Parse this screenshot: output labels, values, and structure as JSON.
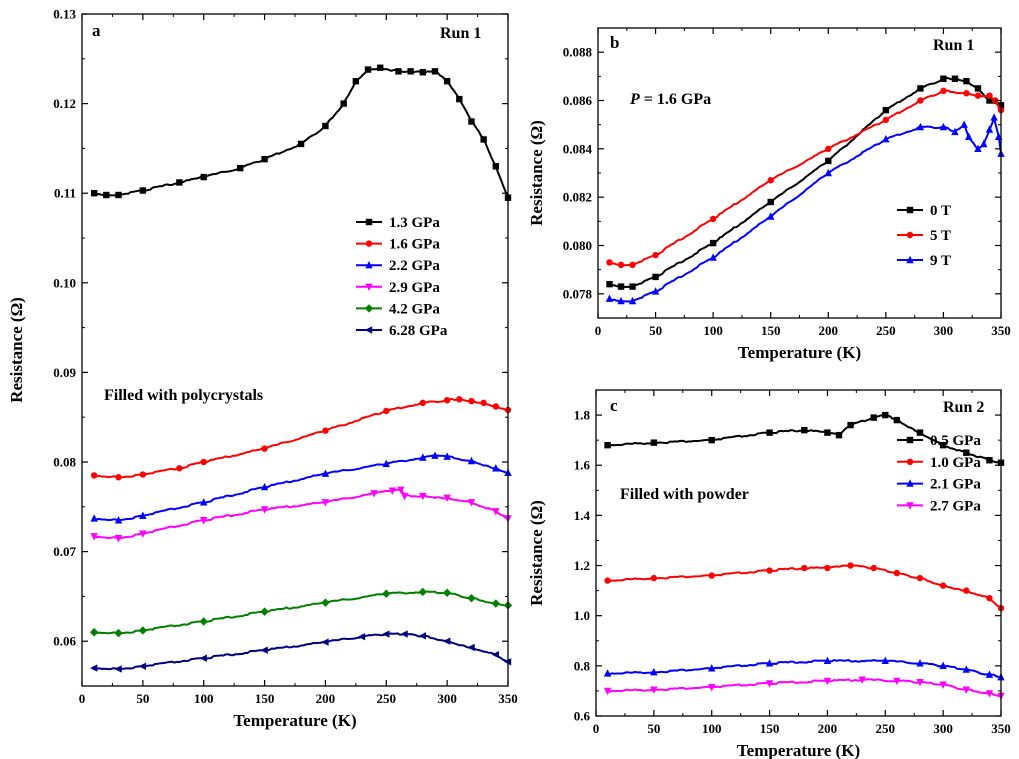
{
  "chart_data": [
    {
      "panel": "a",
      "type": "line",
      "run_label": "Run 1",
      "annotation": "Filled with polycrystals",
      "xlabel": "Temperature (K)",
      "ylabel": "Resistance (Ω)",
      "xlim": [
        0,
        350
      ],
      "ylim": [
        0.055,
        0.13
      ],
      "xticks": [
        0,
        50,
        100,
        150,
        200,
        250,
        300,
        350
      ],
      "yticks": [
        0.06,
        0.07,
        0.08,
        0.09,
        0.1,
        0.11,
        0.12,
        0.13
      ],
      "ytick_labels": [
        "0.06",
        "0.07",
        "0.08",
        "0.09",
        "0.10",
        "0.11",
        "0.12",
        "0.13"
      ],
      "legend_position": "right-middle",
      "series": [
        {
          "name": "1.3 GPa",
          "color": "#000000",
          "marker": "square",
          "x": [
            10,
            20,
            30,
            50,
            80,
            100,
            130,
            150,
            180,
            200,
            215,
            225,
            235,
            245,
            260,
            270,
            280,
            290,
            300,
            310,
            320,
            330,
            340,
            350
          ],
          "y": [
            0.11,
            0.1098,
            0.1098,
            0.1103,
            0.1112,
            0.1118,
            0.1128,
            0.1138,
            0.1155,
            0.1175,
            0.12,
            0.1225,
            0.1238,
            0.124,
            0.1236,
            0.1236,
            0.1235,
            0.1236,
            0.1225,
            0.1205,
            0.118,
            0.116,
            0.113,
            0.1095
          ]
        },
        {
          "name": "1.6 GPa",
          "color": "#ff0000",
          "marker": "circle",
          "x": [
            10,
            30,
            50,
            80,
            100,
            150,
            200,
            250,
            280,
            300,
            310,
            320,
            330,
            340,
            350
          ],
          "y": [
            0.0785,
            0.0783,
            0.0786,
            0.0793,
            0.08,
            0.0815,
            0.0835,
            0.0857,
            0.0866,
            0.0869,
            0.087,
            0.0868,
            0.0866,
            0.0862,
            0.0858
          ]
        },
        {
          "name": "2.2 GPa",
          "color": "#0000ff",
          "marker": "triangle-up",
          "x": [
            10,
            30,
            50,
            100,
            150,
            200,
            250,
            280,
            290,
            300,
            320,
            340,
            350
          ],
          "y": [
            0.0737,
            0.0735,
            0.074,
            0.0755,
            0.0772,
            0.0787,
            0.0798,
            0.0805,
            0.0807,
            0.0806,
            0.0801,
            0.0793,
            0.0788
          ]
        },
        {
          "name": "2.9 GPa",
          "color": "#ff00ff",
          "marker": "triangle-down",
          "x": [
            10,
            30,
            50,
            100,
            150,
            200,
            240,
            255,
            262,
            265,
            280,
            300,
            320,
            340,
            350
          ],
          "y": [
            0.0717,
            0.0715,
            0.072,
            0.0735,
            0.0747,
            0.0755,
            0.0765,
            0.0768,
            0.0769,
            0.0762,
            0.0762,
            0.076,
            0.0755,
            0.0745,
            0.0737
          ]
        },
        {
          "name": "4.2 GPa",
          "color": "#008000",
          "marker": "diamond",
          "x": [
            10,
            30,
            50,
            100,
            150,
            200,
            250,
            280,
            300,
            320,
            340,
            350
          ],
          "y": [
            0.061,
            0.0609,
            0.0612,
            0.0622,
            0.0633,
            0.0643,
            0.0653,
            0.0655,
            0.0654,
            0.0648,
            0.0642,
            0.064
          ]
        },
        {
          "name": "6.28 GPa",
          "color": "#000080",
          "marker": "triangle-left",
          "x": [
            10,
            30,
            50,
            100,
            150,
            200,
            230,
            250,
            265,
            280,
            300,
            320,
            340,
            350
          ],
          "y": [
            0.057,
            0.0569,
            0.0572,
            0.0581,
            0.059,
            0.0599,
            0.0605,
            0.0608,
            0.0608,
            0.0606,
            0.06,
            0.0593,
            0.0585,
            0.0577
          ]
        }
      ]
    },
    {
      "panel": "b",
      "type": "line",
      "run_label": "Run 1",
      "annotation_italic": "P",
      "annotation": " = 1.6 GPa",
      "xlabel": "Temperature (K)",
      "ylabel": "Resistance (Ω)",
      "xlim": [
        0,
        350
      ],
      "ylim": [
        0.077,
        0.089
      ],
      "xticks": [
        0,
        50,
        100,
        150,
        200,
        250,
        300,
        350
      ],
      "yticks": [
        0.078,
        0.08,
        0.082,
        0.084,
        0.086,
        0.088
      ],
      "ytick_labels": [
        "0.078",
        "0.080",
        "0.082",
        "0.084",
        "0.086",
        "0.088"
      ],
      "legend_position": "bottom-right",
      "series": [
        {
          "name": "0 T",
          "color": "#000000",
          "marker": "square",
          "x": [
            10,
            20,
            30,
            50,
            100,
            150,
            200,
            250,
            280,
            300,
            310,
            320,
            330,
            340,
            350
          ],
          "y": [
            0.0784,
            0.0783,
            0.0783,
            0.0787,
            0.0801,
            0.0818,
            0.0835,
            0.0856,
            0.0865,
            0.0869,
            0.0869,
            0.0868,
            0.0865,
            0.086,
            0.0858
          ]
        },
        {
          "name": "5 T",
          "color": "#ff0000",
          "marker": "circle",
          "x": [
            10,
            20,
            30,
            50,
            100,
            150,
            200,
            250,
            280,
            300,
            320,
            330,
            340,
            345,
            350
          ],
          "y": [
            0.0793,
            0.0792,
            0.0792,
            0.0796,
            0.0811,
            0.0827,
            0.084,
            0.0852,
            0.086,
            0.0864,
            0.0863,
            0.0862,
            0.0862,
            0.086,
            0.0856
          ]
        },
        {
          "name": "9 T",
          "color": "#0000ff",
          "marker": "triangle-up",
          "x": [
            10,
            20,
            30,
            50,
            100,
            150,
            200,
            250,
            280,
            300,
            310,
            318,
            322,
            330,
            335,
            340,
            344,
            348,
            350
          ],
          "y": [
            0.0778,
            0.0777,
            0.0777,
            0.0781,
            0.0795,
            0.0812,
            0.083,
            0.0844,
            0.0849,
            0.0849,
            0.0847,
            0.085,
            0.0845,
            0.084,
            0.0842,
            0.0848,
            0.0853,
            0.0845,
            0.0838
          ]
        }
      ]
    },
    {
      "panel": "c",
      "type": "line",
      "run_label": "Run 2",
      "annotation": "Filled with powder",
      "xlabel": "Temperature (K)",
      "ylabel": "Resistance (Ω)",
      "xlim": [
        0,
        350
      ],
      "ylim": [
        0.6,
        1.9
      ],
      "xticks": [
        0,
        50,
        100,
        150,
        200,
        250,
        300,
        350
      ],
      "yticks": [
        0.6,
        0.8,
        1.0,
        1.2,
        1.4,
        1.6,
        1.8
      ],
      "ytick_labels": [
        "0.6",
        "0.8",
        "1.0",
        "1.2",
        "1.4",
        "1.6",
        "1.8"
      ],
      "legend_position": "right-middle",
      "series": [
        {
          "name": "0.5 GPa",
          "color": "#000000",
          "marker": "square",
          "x": [
            10,
            50,
            100,
            150,
            180,
            200,
            210,
            220,
            240,
            250,
            260,
            280,
            300,
            320,
            340,
            350
          ],
          "y": [
            1.68,
            1.69,
            1.7,
            1.73,
            1.74,
            1.73,
            1.72,
            1.76,
            1.79,
            1.8,
            1.78,
            1.73,
            1.68,
            1.65,
            1.62,
            1.61
          ]
        },
        {
          "name": "1.0 GPa",
          "color": "#ff0000",
          "marker": "circle",
          "x": [
            10,
            50,
            100,
            150,
            180,
            200,
            220,
            240,
            260,
            280,
            300,
            320,
            340,
            350
          ],
          "y": [
            1.14,
            1.15,
            1.16,
            1.18,
            1.19,
            1.19,
            1.2,
            1.19,
            1.17,
            1.15,
            1.12,
            1.1,
            1.07,
            1.03
          ]
        },
        {
          "name": "2.1 GPa",
          "color": "#0000ff",
          "marker": "triangle-up",
          "x": [
            10,
            50,
            100,
            150,
            200,
            250,
            280,
            300,
            320,
            340,
            350
          ],
          "y": [
            0.77,
            0.775,
            0.79,
            0.81,
            0.82,
            0.82,
            0.81,
            0.8,
            0.785,
            0.765,
            0.755
          ]
        },
        {
          "name": "2.7 GPa",
          "color": "#ff00ff",
          "marker": "triangle-down",
          "x": [
            10,
            50,
            100,
            150,
            200,
            230,
            260,
            280,
            300,
            320,
            340,
            350
          ],
          "y": [
            0.7,
            0.705,
            0.715,
            0.73,
            0.74,
            0.745,
            0.74,
            0.735,
            0.725,
            0.705,
            0.69,
            0.68
          ]
        }
      ]
    }
  ]
}
